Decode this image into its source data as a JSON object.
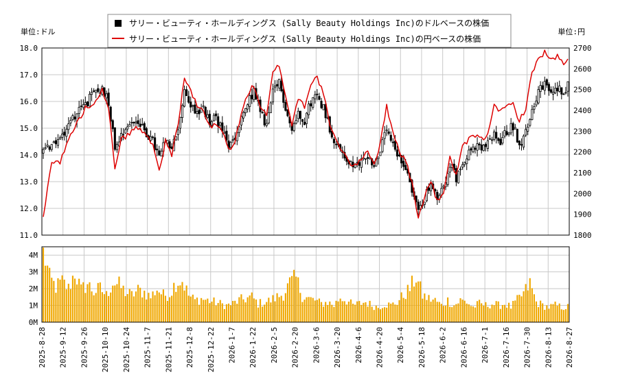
{
  "chart_data": {
    "type": "candlestick",
    "legend": {
      "items": [
        {
          "label": "サリー・ビューティ・ホールディングス (Sally Beauty Holdings Inc)のドルベースの株価",
          "color": "#000000",
          "marker": "square"
        },
        {
          "label": "サリー・ビューティ・ホールディングス (Sally Beauty Holdings Inc)の円ベースの株価",
          "color": "#dd0000",
          "marker": "line"
        }
      ],
      "placement": "top-center"
    },
    "left_unit_label": "単位:ドル",
    "right_unit_label": "単位:円",
    "y_left_ticks": [
      "11.0",
      "12.0",
      "13.0",
      "14.0",
      "15.0",
      "16.0",
      "17.0",
      "18.0"
    ],
    "y_left_range": [
      11.0,
      18.0
    ],
    "y_right_ticks": [
      "1800",
      "1900",
      "2000",
      "2100",
      "2200",
      "2300",
      "2400",
      "2500",
      "2600",
      "2700"
    ],
    "y_right_range": [
      1800,
      2700
    ],
    "volume_ticks": [
      "0M",
      "1M",
      "2M",
      "3M",
      "4M"
    ],
    "volume_range": [
      0,
      4.5
    ],
    "x_tick_labels": [
      "2025-8-28",
      "2025-9-12",
      "2025-9-26",
      "2025-10-10",
      "2025-10-24",
      "2025-11-7",
      "2025-11-21",
      "2025-12-8",
      "2025-12-22",
      "2026-1-7",
      "2026-1-22",
      "2026-2-5",
      "2026-2-20",
      "2026-3-6",
      "2026-3-20",
      "2026-4-6",
      "2026-4-20",
      "2026-5-4",
      "2026-5-18",
      "2026-6-2",
      "2026-6-16",
      "2026-7-1",
      "2026-7-16",
      "2026-7-30",
      "2026-8-13",
      "2026-8-27"
    ],
    "usd_close_anchors": [
      [
        0,
        14.1
      ],
      [
        4,
        14.4
      ],
      [
        8,
        14.6
      ],
      [
        12,
        15.2
      ],
      [
        16,
        15.6
      ],
      [
        20,
        15.9
      ],
      [
        24,
        16.3
      ],
      [
        28,
        16.5
      ],
      [
        31,
        16.0
      ],
      [
        34,
        14.3
      ],
      [
        37,
        14.8
      ],
      [
        40,
        15.1
      ],
      [
        44,
        15.3
      ],
      [
        48,
        14.9
      ],
      [
        52,
        14.5
      ],
      [
        55,
        13.9
      ],
      [
        58,
        14.5
      ],
      [
        61,
        14.2
      ],
      [
        64,
        15.0
      ],
      [
        67,
        16.3
      ],
      [
        70,
        15.9
      ],
      [
        73,
        15.6
      ],
      [
        76,
        15.7
      ],
      [
        79,
        15.2
      ],
      [
        82,
        15.4
      ],
      [
        85,
        14.9
      ],
      [
        88,
        14.3
      ],
      [
        91,
        14.6
      ],
      [
        94,
        15.3
      ],
      [
        97,
        15.9
      ],
      [
        100,
        16.4
      ],
      [
        103,
        15.6
      ],
      [
        106,
        15.1
      ],
      [
        109,
        16.3
      ],
      [
        112,
        16.7
      ],
      [
        115,
        15.8
      ],
      [
        118,
        14.9
      ],
      [
        121,
        15.6
      ],
      [
        124,
        15.3
      ],
      [
        127,
        16.0
      ],
      [
        130,
        16.2
      ],
      [
        133,
        15.8
      ],
      [
        136,
        15.0
      ],
      [
        139,
        14.4
      ],
      [
        142,
        14.1
      ],
      [
        145,
        13.7
      ],
      [
        148,
        13.5
      ],
      [
        151,
        13.8
      ],
      [
        154,
        14.0
      ],
      [
        157,
        13.6
      ],
      [
        160,
        14.2
      ],
      [
        163,
        14.9
      ],
      [
        166,
        14.3
      ],
      [
        169,
        13.8
      ],
      [
        172,
        13.6
      ],
      [
        175,
        12.7
      ],
      [
        178,
        11.9
      ],
      [
        181,
        12.4
      ],
      [
        184,
        12.9
      ],
      [
        187,
        12.3
      ],
      [
        190,
        12.8
      ],
      [
        193,
        13.7
      ],
      [
        196,
        13.1
      ],
      [
        199,
        13.8
      ],
      [
        202,
        14.1
      ],
      [
        205,
        14.3
      ],
      [
        208,
        14.2
      ],
      [
        211,
        14.4
      ],
      [
        214,
        14.7
      ],
      [
        217,
        14.5
      ],
      [
        220,
        14.9
      ],
      [
        223,
        15.1
      ],
      [
        226,
        14.4
      ],
      [
        229,
        14.8
      ],
      [
        232,
        15.7
      ],
      [
        235,
        16.4
      ],
      [
        238,
        16.6
      ],
      [
        241,
        16.3
      ],
      [
        244,
        16.5
      ],
      [
        247,
        16.4
      ],
      [
        249,
        16.6
      ]
    ],
    "jpy_close_anchors": [
      [
        0,
        1880
      ],
      [
        4,
        2160
      ],
      [
        8,
        2150
      ],
      [
        12,
        2260
      ],
      [
        16,
        2340
      ],
      [
        20,
        2410
      ],
      [
        24,
        2440
      ],
      [
        28,
        2500
      ],
      [
        31,
        2400
      ],
      [
        34,
        2130
      ],
      [
        37,
        2260
      ],
      [
        40,
        2280
      ],
      [
        44,
        2320
      ],
      [
        48,
        2290
      ],
      [
        52,
        2240
      ],
      [
        55,
        2110
      ],
      [
        58,
        2250
      ],
      [
        61,
        2190
      ],
      [
        64,
        2330
      ],
      [
        67,
        2560
      ],
      [
        70,
        2490
      ],
      [
        73,
        2420
      ],
      [
        76,
        2400
      ],
      [
        79,
        2320
      ],
      [
        82,
        2330
      ],
      [
        85,
        2300
      ],
      [
        88,
        2210
      ],
      [
        91,
        2250
      ],
      [
        94,
        2380
      ],
      [
        97,
        2480
      ],
      [
        100,
        2520
      ],
      [
        103,
        2420
      ],
      [
        106,
        2370
      ],
      [
        109,
        2580
      ],
      [
        112,
        2620
      ],
      [
        115,
        2470
      ],
      [
        118,
        2330
      ],
      [
        121,
        2460
      ],
      [
        124,
        2420
      ],
      [
        127,
        2530
      ],
      [
        130,
        2560
      ],
      [
        133,
        2480
      ],
      [
        136,
        2330
      ],
      [
        139,
        2250
      ],
      [
        142,
        2210
      ],
      [
        145,
        2150
      ],
      [
        148,
        2130
      ],
      [
        151,
        2170
      ],
      [
        154,
        2210
      ],
      [
        157,
        2140
      ],
      [
        160,
        2240
      ],
      [
        163,
        2420
      ],
      [
        166,
        2300
      ],
      [
        169,
        2200
      ],
      [
        172,
        2160
      ],
      [
        175,
        2050
      ],
      [
        178,
        1880
      ],
      [
        181,
        1990
      ],
      [
        184,
        2060
      ],
      [
        187,
        1960
      ],
      [
        190,
        2010
      ],
      [
        193,
        2170
      ],
      [
        196,
        2090
      ],
      [
        199,
        2220
      ],
      [
        202,
        2260
      ],
      [
        205,
        2280
      ],
      [
        208,
        2260
      ],
      [
        211,
        2280
      ],
      [
        214,
        2440
      ],
      [
        217,
        2390
      ],
      [
        220,
        2420
      ],
      [
        223,
        2430
      ],
      [
        226,
        2350
      ],
      [
        229,
        2410
      ],
      [
        232,
        2580
      ],
      [
        235,
        2650
      ],
      [
        238,
        2680
      ],
      [
        241,
        2640
      ],
      [
        244,
        2660
      ],
      [
        247,
        2620
      ],
      [
        249,
        2640
      ]
    ],
    "volume_anchors_millions": [
      [
        0,
        4.3
      ],
      [
        3,
        2.6
      ],
      [
        6,
        2.1
      ],
      [
        9,
        2.4
      ],
      [
        12,
        2.0
      ],
      [
        15,
        3.0
      ],
      [
        18,
        1.9
      ],
      [
        21,
        2.3
      ],
      [
        24,
        1.8
      ],
      [
        27,
        2.0
      ],
      [
        30,
        1.6
      ],
      [
        33,
        2.4
      ],
      [
        36,
        2.2
      ],
      [
        39,
        1.8
      ],
      [
        42,
        1.6
      ],
      [
        45,
        1.9
      ],
      [
        48,
        1.8
      ],
      [
        51,
        1.5
      ],
      [
        54,
        2.0
      ],
      [
        57,
        1.6
      ],
      [
        60,
        1.7
      ],
      [
        63,
        2.4
      ],
      [
        66,
        2.5
      ],
      [
        69,
        1.6
      ],
      [
        72,
        1.3
      ],
      [
        75,
        1.4
      ],
      [
        78,
        1.3
      ],
      [
        81,
        1.2
      ],
      [
        84,
        1.1
      ],
      [
        87,
        1.0
      ],
      [
        90,
        1.1
      ],
      [
        93,
        1.3
      ],
      [
        96,
        1.4
      ],
      [
        99,
        1.5
      ],
      [
        102,
        1.1
      ],
      [
        105,
        1.2
      ],
      [
        108,
        1.3
      ],
      [
        111,
        1.5
      ],
      [
        114,
        1.7
      ],
      [
        117,
        2.3
      ],
      [
        120,
        2.6
      ],
      [
        123,
        1.6
      ],
      [
        126,
        1.4
      ],
      [
        129,
        1.3
      ],
      [
        132,
        1.1
      ],
      [
        135,
        1.2
      ],
      [
        138,
        1.0
      ],
      [
        141,
        1.5
      ],
      [
        144,
        1.3
      ],
      [
        147,
        1.0
      ],
      [
        150,
        1.1
      ],
      [
        153,
        1.2
      ],
      [
        156,
        1.0
      ],
      [
        159,
        0.9
      ],
      [
        162,
        1.1
      ],
      [
        165,
        1.0
      ],
      [
        168,
        1.2
      ],
      [
        171,
        1.6
      ],
      [
        174,
        2.0
      ],
      [
        177,
        2.7
      ],
      [
        180,
        1.6
      ],
      [
        183,
        1.4
      ],
      [
        186,
        1.3
      ],
      [
        189,
        1.0
      ],
      [
        192,
        1.3
      ],
      [
        195,
        1.0
      ],
      [
        198,
        1.3
      ],
      [
        201,
        1.2
      ],
      [
        204,
        0.9
      ],
      [
        207,
        1.1
      ],
      [
        210,
        1.0
      ],
      [
        213,
        1.1
      ],
      [
        216,
        1.0
      ],
      [
        219,
        1.1
      ],
      [
        222,
        0.9
      ],
      [
        225,
        1.3
      ],
      [
        228,
        1.7
      ],
      [
        231,
        2.3
      ],
      [
        234,
        1.2
      ],
      [
        237,
        1.0
      ],
      [
        240,
        0.9
      ],
      [
        243,
        1.0
      ],
      [
        246,
        0.9
      ],
      [
        249,
        0.9
      ]
    ],
    "colors": {
      "candle": "#000000",
      "jpy_line": "#dd0000",
      "volume_bar": "#f0a800",
      "grid": "#c8c8c8",
      "frame": "#000000"
    },
    "grid": true
  }
}
